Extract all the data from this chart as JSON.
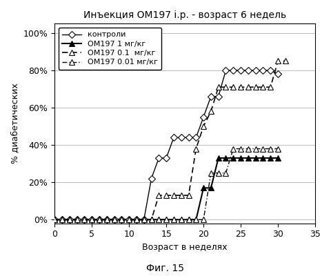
{
  "title": "Инъекция ОМ197 i.p. - возраст 6 недель",
  "xlabel": "Возраст в неделях",
  "ylabel": "% диабетических",
  "caption": "Фиг. 15",
  "xlim": [
    0,
    35
  ],
  "ylim": [
    -0.02,
    1.05
  ],
  "yticks": [
    0,
    0.2,
    0.4,
    0.6,
    0.8,
    1.0
  ],
  "ytick_labels": [
    "0%",
    "20%",
    "40%",
    "60%",
    "80%",
    "100%"
  ],
  "xticks": [
    0,
    5,
    10,
    15,
    20,
    25,
    30,
    35
  ],
  "controls": {
    "label": "контроли",
    "x": [
      0,
      1,
      2,
      3,
      4,
      5,
      6,
      7,
      8,
      9,
      10,
      11,
      12,
      13,
      14,
      15,
      16,
      17,
      18,
      19,
      20,
      21,
      22,
      23,
      24,
      25,
      26,
      27,
      28,
      29,
      30
    ],
    "y": [
      0,
      0,
      0,
      0,
      0,
      0,
      0,
      0,
      0,
      0,
      0,
      0,
      0,
      0.22,
      0.33,
      0.33,
      0.44,
      0.44,
      0.44,
      0.44,
      0.55,
      0.66,
      0.66,
      0.8,
      0.8,
      0.8,
      0.8,
      0.8,
      0.8,
      0.8,
      0.78
    ],
    "marker": "D",
    "linestyle": "-",
    "markersize": 5
  },
  "om197_1": {
    "label": "ОМ197 1 мг/кг",
    "x": [
      0,
      1,
      2,
      3,
      4,
      5,
      6,
      7,
      8,
      9,
      10,
      11,
      12,
      13,
      14,
      15,
      16,
      17,
      18,
      19,
      20,
      21,
      22,
      23,
      24,
      25,
      26,
      27,
      28,
      29,
      30
    ],
    "y": [
      0,
      0,
      0,
      0,
      0,
      0,
      0,
      0,
      0,
      0,
      0,
      0,
      0,
      0,
      0,
      0,
      0,
      0,
      0,
      0,
      0.17,
      0.17,
      0.33,
      0.33,
      0.33,
      0.33,
      0.33,
      0.33,
      0.33,
      0.33,
      0.33
    ],
    "marker": "^",
    "linestyle": "-",
    "markersize": 6,
    "filled": true
  },
  "om197_01": {
    "label": "ОМ197 0.1  мг/кг",
    "x": [
      0,
      1,
      2,
      3,
      4,
      5,
      6,
      7,
      8,
      9,
      10,
      11,
      12,
      13,
      14,
      15,
      16,
      17,
      18,
      19,
      20,
      21,
      22,
      23,
      24,
      25,
      26,
      27,
      28,
      29,
      30,
      31
    ],
    "y": [
      0,
      0,
      0,
      0,
      0,
      0,
      0,
      0,
      0,
      0,
      0,
      0,
      0,
      0,
      0.13,
      0.13,
      0.13,
      0.13,
      0.13,
      0.38,
      0.5,
      0.58,
      0.71,
      0.71,
      0.71,
      0.71,
      0.71,
      0.71,
      0.71,
      0.71,
      0.85,
      0.85
    ],
    "marker": "^",
    "linestyle": "--",
    "markersize": 6,
    "filled": false
  },
  "om197_001": {
    "label": "ОМ197 0.01 мг/кг",
    "x": [
      0,
      1,
      2,
      3,
      4,
      5,
      6,
      7,
      8,
      9,
      10,
      11,
      12,
      13,
      14,
      15,
      16,
      17,
      18,
      19,
      20,
      21,
      22,
      23,
      24,
      25,
      26,
      27,
      28,
      29,
      30
    ],
    "y": [
      0,
      0,
      0,
      0,
      0,
      0,
      0,
      0,
      0,
      0,
      0,
      0,
      0,
      0,
      0,
      0,
      0,
      0,
      0,
      0,
      0,
      0.25,
      0.25,
      0.25,
      0.38,
      0.38,
      0.38,
      0.38,
      0.38,
      0.38,
      0.38
    ],
    "marker": "^",
    "linestyle": "-.",
    "markersize": 6,
    "filled": false
  },
  "background_color": "#ffffff",
  "grid_color": "#bbbbbb"
}
